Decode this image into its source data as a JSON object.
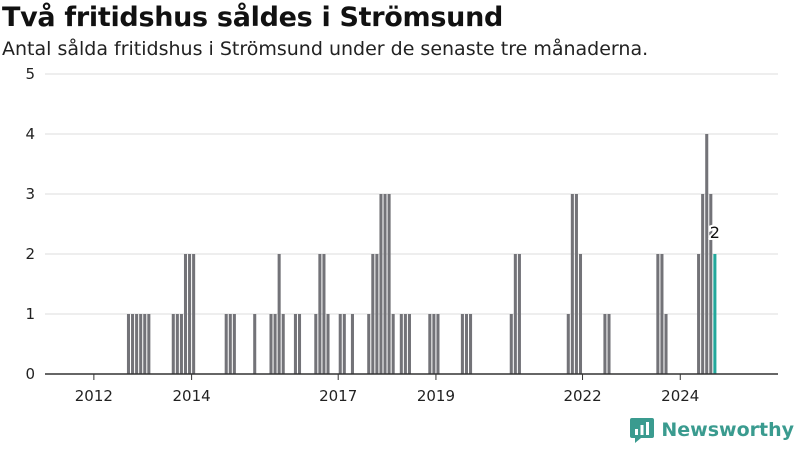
{
  "title": "Två fritidshus såldes i Strömsund",
  "subtitle": "Antal sålda fritidshus i Strömsund under de senaste tre månaderna.",
  "brand": {
    "name": "Newsworthy",
    "color": "#3a9b8f"
  },
  "colors": {
    "bar": "#737378",
    "highlight": "#23a89b",
    "grid": "#dedede",
    "axis": "#333333"
  },
  "chart_data": {
    "type": "bar",
    "x_unit": "month",
    "x_start": "2011-01",
    "x_end": "2025-12",
    "ylim": [
      0,
      5
    ],
    "yticks": [
      0,
      1,
      2,
      3,
      4,
      5
    ],
    "xticks": [
      "2012",
      "2014",
      "2017",
      "2019",
      "2022",
      "2024"
    ],
    "grid": true,
    "highlight_label": "2",
    "bars": [
      {
        "x": "2012-09",
        "y": 1
      },
      {
        "x": "2012-10",
        "y": 1
      },
      {
        "x": "2012-11",
        "y": 1
      },
      {
        "x": "2012-12",
        "y": 1
      },
      {
        "x": "2013-01",
        "y": 1
      },
      {
        "x": "2013-02",
        "y": 1
      },
      {
        "x": "2013-08",
        "y": 1
      },
      {
        "x": "2013-09",
        "y": 1
      },
      {
        "x": "2013-10",
        "y": 1
      },
      {
        "x": "2013-11",
        "y": 2
      },
      {
        "x": "2013-12",
        "y": 2
      },
      {
        "x": "2014-01",
        "y": 2
      },
      {
        "x": "2014-09",
        "y": 1
      },
      {
        "x": "2014-10",
        "y": 1
      },
      {
        "x": "2014-11",
        "y": 1
      },
      {
        "x": "2015-04",
        "y": 1
      },
      {
        "x": "2015-08",
        "y": 1
      },
      {
        "x": "2015-09",
        "y": 1
      },
      {
        "x": "2015-10",
        "y": 2
      },
      {
        "x": "2015-11",
        "y": 1
      },
      {
        "x": "2016-02",
        "y": 1
      },
      {
        "x": "2016-03",
        "y": 1
      },
      {
        "x": "2016-07",
        "y": 1
      },
      {
        "x": "2016-08",
        "y": 2
      },
      {
        "x": "2016-09",
        "y": 2
      },
      {
        "x": "2016-10",
        "y": 1
      },
      {
        "x": "2017-01",
        "y": 1
      },
      {
        "x": "2017-02",
        "y": 1
      },
      {
        "x": "2017-04",
        "y": 1
      },
      {
        "x": "2017-08",
        "y": 1
      },
      {
        "x": "2017-09",
        "y": 2
      },
      {
        "x": "2017-10",
        "y": 2
      },
      {
        "x": "2017-11",
        "y": 3
      },
      {
        "x": "2017-12",
        "y": 3
      },
      {
        "x": "2018-01",
        "y": 3
      },
      {
        "x": "2018-02",
        "y": 1
      },
      {
        "x": "2018-04",
        "y": 1
      },
      {
        "x": "2018-05",
        "y": 1
      },
      {
        "x": "2018-06",
        "y": 1
      },
      {
        "x": "2018-11",
        "y": 1
      },
      {
        "x": "2018-12",
        "y": 1
      },
      {
        "x": "2019-01",
        "y": 1
      },
      {
        "x": "2019-07",
        "y": 1
      },
      {
        "x": "2019-08",
        "y": 1
      },
      {
        "x": "2019-09",
        "y": 1
      },
      {
        "x": "2020-07",
        "y": 1
      },
      {
        "x": "2020-08",
        "y": 2
      },
      {
        "x": "2020-09",
        "y": 2
      },
      {
        "x": "2021-09",
        "y": 1
      },
      {
        "x": "2021-10",
        "y": 3
      },
      {
        "x": "2021-11",
        "y": 3
      },
      {
        "x": "2021-12",
        "y": 2
      },
      {
        "x": "2022-06",
        "y": 1
      },
      {
        "x": "2022-07",
        "y": 1
      },
      {
        "x": "2023-07",
        "y": 2
      },
      {
        "x": "2023-08",
        "y": 2
      },
      {
        "x": "2023-09",
        "y": 1
      },
      {
        "x": "2024-05",
        "y": 2
      },
      {
        "x": "2024-06",
        "y": 3
      },
      {
        "x": "2024-07",
        "y": 4
      },
      {
        "x": "2024-08",
        "y": 3
      },
      {
        "x": "2024-09",
        "y": 2,
        "highlight": true
      }
    ]
  }
}
